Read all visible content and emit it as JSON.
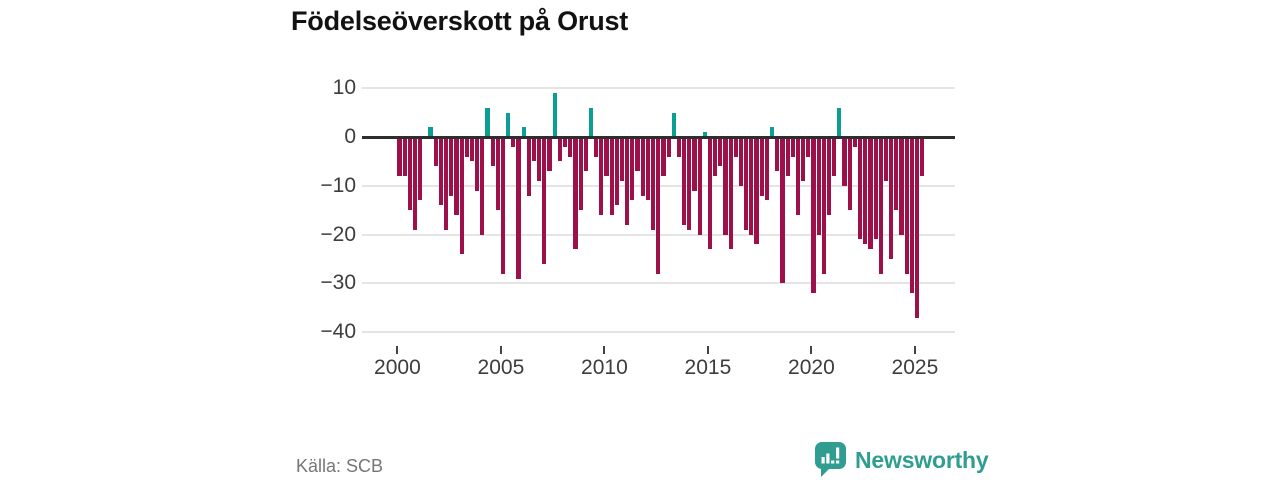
{
  "title": "Födelseöverskott på Orust",
  "source": "Källa: SCB",
  "logo": {
    "text": "Newsworthy"
  },
  "colors": {
    "positive": "#0b9e94",
    "negative": "#9e1049",
    "axis": "#2e2e2e",
    "grid": "#e4e4e4",
    "logo_teal": "#2f9e90",
    "background": "#ffffff"
  },
  "chart_data": {
    "type": "bar",
    "title": "Födelseöverskott på Orust",
    "x_frequency": "quarterly",
    "x_start": "2000Q1",
    "x_end": "2025Q2",
    "ylim": [
      -40,
      10
    ],
    "yticks": [
      10,
      0,
      -10,
      -20,
      -30,
      -40
    ],
    "xticks": [
      2000,
      2005,
      2010,
      2015,
      2020,
      2025
    ],
    "grid": true,
    "legend": "none",
    "positive_color": "#0b9e94",
    "negative_color": "#9e1049",
    "series": [
      {
        "name": "Födelseöverskott",
        "values": [
          -8,
          -8,
          -15,
          -19,
          -13,
          0,
          2,
          -6,
          -14,
          -19,
          -12,
          -16,
          -24,
          -4,
          -5,
          -11,
          -20,
          6,
          -6,
          -15,
          -28,
          5,
          -2,
          -29,
          2,
          -12,
          -5,
          -9,
          -26,
          -7,
          9,
          -5,
          -2,
          -4,
          -23,
          -15,
          -7,
          6,
          -4,
          -16,
          -8,
          -16,
          -14,
          -9,
          -18,
          -13,
          -7,
          -12,
          -13,
          -19,
          -28,
          -8,
          -4,
          5,
          -4,
          -18,
          -19,
          -11,
          -20,
          1,
          -23,
          -8,
          -6,
          -20,
          -23,
          -4,
          -10,
          -19,
          -20,
          -22,
          -12,
          -13,
          2,
          -7,
          -30,
          -8,
          -4,
          -16,
          -9,
          -4,
          -32,
          -20,
          -28,
          -16,
          -8,
          6,
          -10,
          -15,
          -2,
          -21,
          -22,
          -23,
          -21,
          -28,
          -9,
          -25,
          -15,
          -20,
          -28,
          -32,
          -37,
          -8
        ]
      }
    ]
  }
}
